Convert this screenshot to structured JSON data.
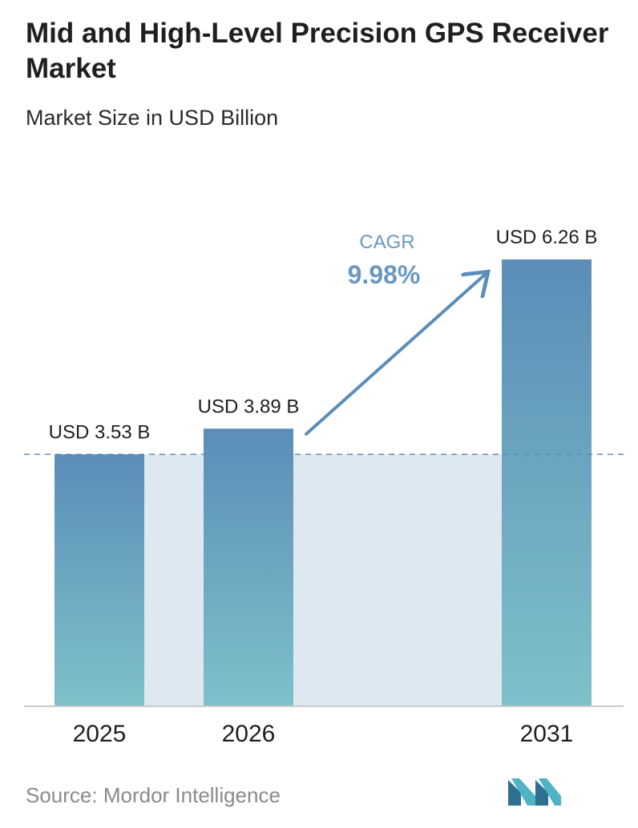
{
  "title": "Mid and High-Level Precision GPS Receiver Market",
  "subtitle": "Market Size in USD Billion",
  "source": "Source:  Mordor Intelligence",
  "colors": {
    "bar_top": "#5b8db8",
    "bar_bottom": "#7ec1c9",
    "band": "#dde8f1",
    "arrow": "#5b8db8",
    "cagr": "#6a98c0",
    "baseline": "#c9c9c9",
    "dashed": "#5b8db8"
  },
  "chart_data": {
    "type": "bar",
    "title": "Mid and High-Level Precision GPS Receiver Market",
    "subtitle": "Market Size in USD Billion",
    "categories": [
      "2025",
      "2026",
      "2031"
    ],
    "values": [
      3.53,
      3.89,
      6.26
    ],
    "data_labels": [
      "USD 3.53 B",
      "USD 3.89 B",
      "USD 6.26 B"
    ],
    "annotation": {
      "label": "CAGR",
      "value": "9.98%"
    },
    "ylim": [
      0,
      6.26
    ],
    "grid": false
  }
}
